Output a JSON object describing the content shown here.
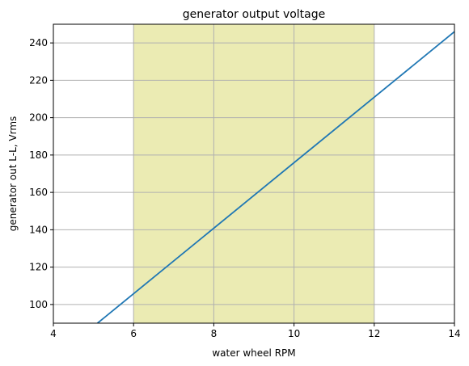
{
  "chart_data": {
    "type": "line",
    "title": "generator output voltage",
    "xlabel": "water wheel RPM",
    "ylabel": "generator out L-L, Vrms",
    "xlim": [
      4,
      14
    ],
    "ylim": [
      90,
      250
    ],
    "xticks": [
      4,
      6,
      8,
      10,
      12,
      14
    ],
    "yticks": [
      100,
      120,
      140,
      160,
      180,
      200,
      220,
      240
    ],
    "grid": true,
    "shaded_region": {
      "x": [
        6,
        12
      ],
      "color": "#ebebb3"
    },
    "series": [
      {
        "x": [
          5.1,
          14
        ],
        "y": [
          90,
          246
        ],
        "color": "#1f77b4"
      }
    ]
  }
}
